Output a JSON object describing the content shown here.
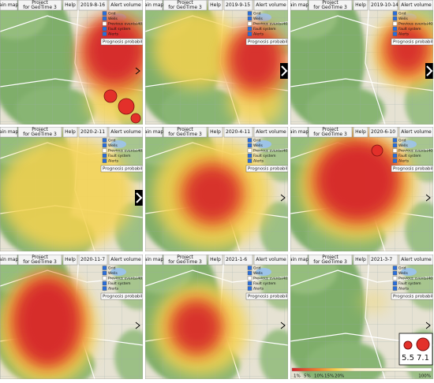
{
  "toolbar": {
    "map": "ain map",
    "project_top": "Project",
    "project_bottom": "for GeoTime 3",
    "help": "Help",
    "alert": "Alert volume"
  },
  "layers": [
    "Grid",
    "Wells",
    "Previous events(40)",
    "Fault system",
    "Alerts"
  ],
  "prognosis": "Prognosis probability",
  "panels": [
    {
      "date": "2019-8-16"
    },
    {
      "date": "2019-9-15"
    },
    {
      "date": "2019-10-14"
    },
    {
      "date": "2020-2-11"
    },
    {
      "date": "2020-4-11"
    },
    {
      "date": "2020-6-10"
    },
    {
      "date": "2020-11-7"
    },
    {
      "date": "2021-1-6"
    },
    {
      "date": "2021-3-7"
    }
  ],
  "legend": {
    "magnitudes": [
      "5.5",
      "7.1"
    ],
    "scale_labels": [
      "1%",
      "5%",
      "10%",
      "15%",
      "20%"
    ],
    "max_label": "100%"
  }
}
